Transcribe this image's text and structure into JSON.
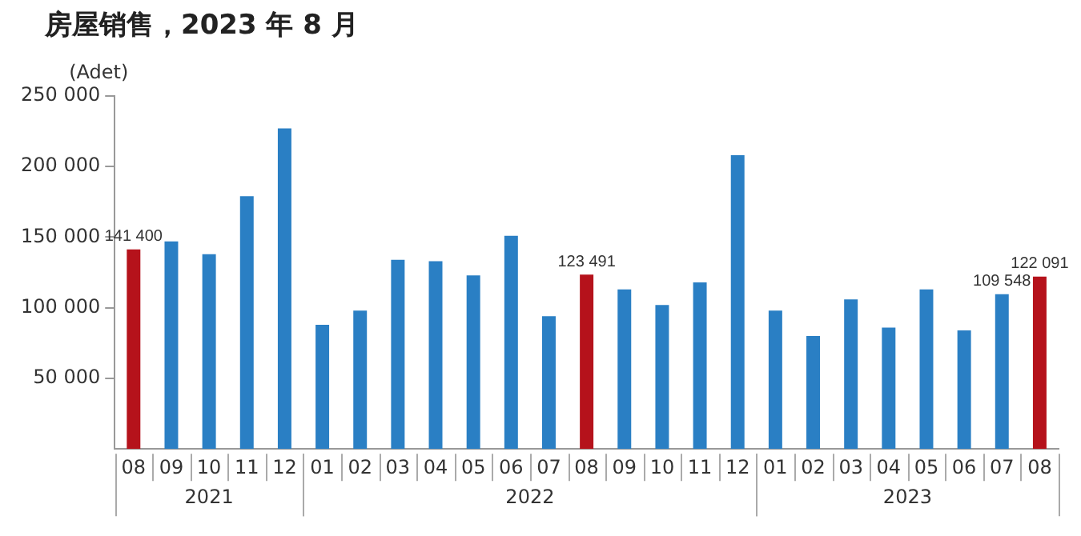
{
  "chart_data": {
    "type": "bar",
    "title": "房屋销售，2023 年 8 月",
    "ylabel": "(Adet)",
    "categories": [
      "08",
      "09",
      "10",
      "11",
      "12",
      "01",
      "02",
      "03",
      "04",
      "05",
      "06",
      "07",
      "08",
      "09",
      "10",
      "11",
      "12",
      "01",
      "02",
      "03",
      "04",
      "05",
      "06",
      "07",
      "08"
    ],
    "values": [
      141400,
      147000,
      138000,
      179000,
      227000,
      88000,
      98000,
      134000,
      133000,
      123000,
      151000,
      94000,
      123491,
      113000,
      102000,
      118000,
      208000,
      98000,
      80000,
      106000,
      86000,
      113000,
      84000,
      109548,
      122091
    ],
    "colors": [
      "#b5121b",
      "#2a7fc4",
      "#2a7fc4",
      "#2a7fc4",
      "#2a7fc4",
      "#2a7fc4",
      "#2a7fc4",
      "#2a7fc4",
      "#2a7fc4",
      "#2a7fc4",
      "#2a7fc4",
      "#2a7fc4",
      "#b5121b",
      "#2a7fc4",
      "#2a7fc4",
      "#2a7fc4",
      "#2a7fc4",
      "#2a7fc4",
      "#2a7fc4",
      "#2a7fc4",
      "#2a7fc4",
      "#2a7fc4",
      "#2a7fc4",
      "#2a7fc4",
      "#b5121b"
    ],
    "value_labels": [
      "141 400",
      null,
      null,
      null,
      null,
      null,
      null,
      null,
      null,
      null,
      null,
      null,
      "123 491",
      null,
      null,
      null,
      null,
      null,
      null,
      null,
      null,
      null,
      null,
      "109 548",
      "122 091"
    ],
    "annotations": [
      "2021",
      "2022",
      "2023"
    ],
    "ylim": [
      0,
      250000
    ],
    "yticks": [
      {
        "value": 50000,
        "label": "50 000"
      },
      {
        "value": 100000,
        "label": "100 000"
      },
      {
        "value": 150000,
        "label": "150 000"
      },
      {
        "value": 200000,
        "label": "200 000"
      },
      {
        "value": 250000,
        "label": "250 000"
      }
    ],
    "grid": false,
    "legend": false
  }
}
